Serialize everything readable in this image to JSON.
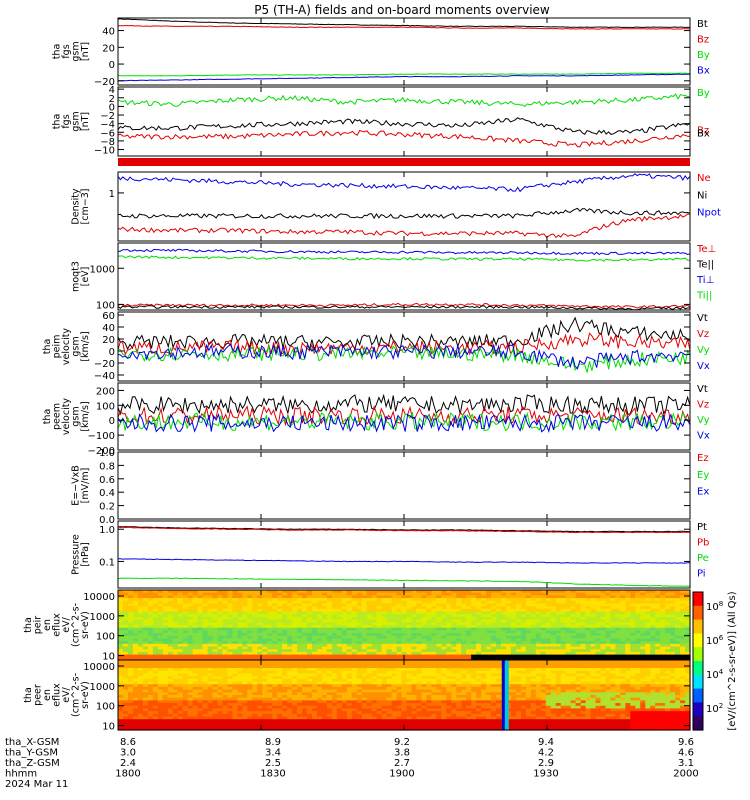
{
  "title": "P5 (TH-A) fields and on-board moments overview",
  "colors": {
    "black": "#000000",
    "red": "#e00000",
    "green": "#00dd00",
    "blue": "#0000e6"
  },
  "chart_data": [
    {
      "type": "line",
      "ylabel": [
        "tha",
        "fgs",
        "gsm",
        "[nT]"
      ],
      "ylim": [
        -25,
        55
      ],
      "yticks": [
        {
          "v": 40,
          "t": "40"
        },
        {
          "v": 20,
          "t": "20"
        },
        {
          "v": 0,
          "t": "0"
        },
        {
          "v": -20,
          "t": "−20"
        }
      ],
      "series": [
        {
          "name": "Bt",
          "color": "#000000",
          "values": [
            54,
            51,
            49,
            48,
            47,
            46,
            45,
            45,
            44,
            44,
            44
          ]
        },
        {
          "name": "Bz",
          "color": "#e00000",
          "values": [
            46,
            45,
            45,
            44,
            44,
            44,
            43,
            43,
            42,
            42,
            42
          ]
        },
        {
          "name": "By",
          "color": "#00dd00",
          "values": [
            -14,
            -14,
            -13,
            -13,
            -13,
            -12,
            -12,
            -12,
            -12,
            -11,
            -11
          ]
        },
        {
          "name": "Bx",
          "color": "#0000e6",
          "values": [
            -20,
            -19,
            -18,
            -17,
            -16,
            -15,
            -15,
            -14,
            -14,
            -13,
            -12
          ]
        }
      ]
    },
    {
      "type": "line",
      "ylabel": [
        "tha",
        "fgs",
        "gsm",
        "[nT]"
      ],
      "ylim": [
        -11.5,
        4.5
      ],
      "yticks": [
        {
          "v": 4,
          "t": "4"
        },
        {
          "v": 2,
          "t": "2"
        },
        {
          "v": 0,
          "t": "0"
        },
        {
          "v": -2,
          "t": "−2"
        },
        {
          "v": -4,
          "t": "−4"
        },
        {
          "v": -6,
          "t": "−6"
        },
        {
          "v": -8,
          "t": "−8"
        },
        {
          "v": -10,
          "t": "−10"
        }
      ],
      "series": [
        {
          "name": "By",
          "color": "#00dd00",
          "values": [
            1,
            0.5,
            1.5,
            2,
            1,
            1.5,
            1,
            0.5,
            1,
            1.5,
            2.5
          ]
        },
        {
          "name": "Bz",
          "color": "#e00000",
          "values": [
            -7,
            -7,
            -7,
            -6.5,
            -6,
            -6.5,
            -7,
            -8,
            -9,
            -8,
            -6.5
          ]
        },
        {
          "name": "Bx",
          "color": "#000000",
          "values": [
            -5,
            -5,
            -4.5,
            -4,
            -3.5,
            -4,
            -4.5,
            -3,
            -6,
            -6,
            -4
          ]
        }
      ]
    },
    {
      "type": "line",
      "ylabel": [],
      "series": [
        {
          "name": "",
          "color": "#e00000",
          "values": [
            1
          ]
        }
      ]
    },
    {
      "type": "line",
      "ylabel": [
        "Density",
        "[cm−3]"
      ],
      "scale": "log",
      "ylim": [
        0.08,
        3
      ],
      "yticks": [
        {
          "v": 1,
          "t": "1"
        }
      ],
      "series": [
        {
          "name": "Ne",
          "color": "#e00000",
          "values": [
            0.15,
            0.14,
            0.14,
            0.13,
            0.13,
            0.12,
            0.12,
            0.12,
            0.1,
            0.25,
            0.3
          ]
        },
        {
          "name": "Ni",
          "color": "#000000",
          "values": [
            0.3,
            0.3,
            0.3,
            0.3,
            0.3,
            0.3,
            0.3,
            0.3,
            0.4,
            0.35,
            0.35
          ]
        },
        {
          "name": "Npot",
          "color": "#0000e6",
          "values": [
            2.2,
            2,
            1.8,
            1.6,
            1.5,
            1.4,
            1.3,
            1.2,
            1.8,
            2.5,
            2.2
          ]
        }
      ]
    },
    {
      "type": "line",
      "ylabel": [
        "moqt3",
        "[eV]"
      ],
      "scale": "log",
      "ylim": [
        70,
        5000
      ],
      "yticks": [
        {
          "v": 1000,
          "t": "1000"
        },
        {
          "v": 100,
          "t": "100"
        }
      ],
      "series": [
        {
          "name": "Te⊥",
          "color": "#e00000",
          "values": [
            95,
            95,
            95,
            95,
            95,
            100,
            100,
            95,
            90,
            85,
            90
          ]
        },
        {
          "name": "Te||",
          "color": "#000000",
          "values": [
            85,
            85,
            85,
            85,
            85,
            85,
            85,
            85,
            80,
            75,
            80
          ]
        },
        {
          "name": "Ti⊥",
          "color": "#0000e6",
          "values": [
            3200,
            3100,
            3000,
            2900,
            2800,
            2800,
            2700,
            2700,
            2600,
            2600,
            2600
          ]
        },
        {
          "name": "Ti||",
          "color": "#00dd00",
          "values": [
            2100,
            2000,
            1950,
            1900,
            1850,
            1850,
            1800,
            1800,
            1700,
            1700,
            1800
          ]
        }
      ]
    },
    {
      "type": "line",
      "ylabel": [
        "tha",
        "peim",
        "velocity",
        "gsm",
        "[km/s]"
      ],
      "ylim": [
        -50,
        65
      ],
      "yticks": [
        {
          "v": 60,
          "t": "60"
        },
        {
          "v": 40,
          "t": "40"
        },
        {
          "v": 20,
          "t": "20"
        },
        {
          "v": 0,
          "t": "0"
        },
        {
          "v": -20,
          "t": "−20"
        },
        {
          "v": -40,
          "t": "−40"
        }
      ],
      "series": [
        {
          "name": "Vt",
          "color": "#000000",
          "values": [
            15,
            15,
            16,
            15,
            14,
            16,
            15,
            18,
            45,
            30,
            25
          ]
        },
        {
          "name": "Vz",
          "color": "#e00000",
          "values": [
            5,
            5,
            6,
            5,
            5,
            6,
            5,
            6,
            20,
            15,
            10
          ]
        },
        {
          "name": "Vy",
          "color": "#00dd00",
          "values": [
            -5,
            -4,
            -5,
            -4,
            -5,
            -4,
            -5,
            -6,
            -25,
            -15,
            -10
          ]
        },
        {
          "name": "Vx",
          "color": "#0000e6",
          "values": [
            -2,
            -2,
            -1,
            -2,
            -1,
            -2,
            -1,
            -2,
            -20,
            -10,
            -5
          ]
        }
      ]
    },
    {
      "type": "line",
      "ylabel": [
        "tha",
        "peem",
        "velocity",
        "gsm",
        "[km/s]"
      ],
      "ylim": [
        -200,
        250
      ],
      "yticks": [
        {
          "v": 200,
          "t": "200"
        },
        {
          "v": 100,
          "t": "100"
        },
        {
          "v": 0,
          "t": "0"
        },
        {
          "v": -100,
          "t": "−100"
        },
        {
          "v": -200,
          "t": "−200"
        }
      ],
      "series": [
        {
          "name": "Vt",
          "color": "#000000",
          "values": [
            100,
            100,
            105,
            100,
            110,
            105,
            100,
            110,
            105,
            100,
            100
          ]
        },
        {
          "name": "Vz",
          "color": "#e00000",
          "values": [
            30,
            30,
            35,
            30,
            35,
            30,
            30,
            35,
            30,
            30,
            30
          ]
        },
        {
          "name": "Vy",
          "color": "#00dd00",
          "values": [
            -10,
            -10,
            -10,
            -10,
            -10,
            -10,
            -10,
            -10,
            -10,
            -10,
            -10
          ]
        },
        {
          "name": "Vx",
          "color": "#0000e6",
          "values": [
            -20,
            -20,
            -20,
            -20,
            -20,
            -20,
            -20,
            -20,
            -20,
            -20,
            -20
          ]
        }
      ]
    },
    {
      "type": "line",
      "ylabel": [
        "E=−VxB",
        "[mV/m]"
      ],
      "ylim": [
        0,
        1
      ],
      "yticks": [
        {
          "v": 1,
          "t": "1.0"
        },
        {
          "v": 0.8,
          "t": "0.8"
        },
        {
          "v": 0.6,
          "t": "0.6"
        },
        {
          "v": 0.4,
          "t": "0.4"
        },
        {
          "v": 0.2,
          "t": "0.2"
        },
        {
          "v": 0,
          "t": "0.0"
        }
      ],
      "series": [
        {
          "name": "Ez",
          "color": "#e00000",
          "values": []
        },
        {
          "name": "Ey",
          "color": "#00dd00",
          "values": []
        },
        {
          "name": "Ex",
          "color": "#0000e6",
          "values": []
        }
      ]
    },
    {
      "type": "line",
      "ylabel": [
        "Pressure",
        "[nPa]"
      ],
      "scale": "log",
      "ylim": [
        0.015,
        1.8
      ],
      "yticks": [
        {
          "v": 1,
          "t": "1.0"
        },
        {
          "v": 0.1,
          "t": "0.1"
        }
      ],
      "series": [
        {
          "name": "Pt",
          "color": "#000000",
          "values": [
            1.2,
            1.1,
            1.05,
            1,
            1,
            0.95,
            0.95,
            0.9,
            0.85,
            0.85,
            0.85
          ]
        },
        {
          "name": "Pb",
          "color": "#e00000",
          "values": [
            1.15,
            1.05,
            1,
            0.95,
            0.95,
            0.9,
            0.9,
            0.85,
            0.8,
            0.8,
            0.8
          ]
        },
        {
          "name": "Pe",
          "color": "#00dd00",
          "values": [
            0.03,
            0.03,
            0.029,
            0.028,
            0.027,
            0.026,
            0.025,
            0.024,
            0.02,
            0.018,
            0.017
          ]
        },
        {
          "name": "Pi",
          "color": "#0000e6",
          "values": [
            0.12,
            0.115,
            0.11,
            0.105,
            0.1,
            0.1,
            0.095,
            0.095,
            0.09,
            0.09,
            0.09
          ]
        }
      ]
    },
    {
      "type": "heatmap",
      "ylabel": [
        "tha",
        "peir",
        "en",
        "eflux",
        "eV/",
        "(cm^2-s-",
        "sr-eV)"
      ],
      "scale": "log",
      "ylim": [
        6,
        20000
      ],
      "yticks": [
        {
          "v": 10000,
          "t": "10000"
        },
        {
          "v": 1000,
          "t": "1000"
        },
        {
          "v": 100,
          "t": "100"
        },
        {
          "v": 10,
          "t": "10"
        }
      ]
    },
    {
      "type": "heatmap",
      "ylabel": [
        "tha",
        "peer",
        "en",
        "eflux",
        "eV/",
        "(cm^2-s-",
        "sr-eV)"
      ],
      "scale": "log",
      "ylim": [
        6,
        20000
      ],
      "yticks": [
        {
          "v": 10000,
          "t": "10000"
        },
        {
          "v": 1000,
          "t": "1000"
        },
        {
          "v": 100,
          "t": "100"
        },
        {
          "v": 10,
          "t": "10"
        }
      ]
    }
  ],
  "colorbar": {
    "label": "[eV/(cm^2-s-sr-eV)] (All Qs)",
    "ticks": [
      "10^8",
      "10^6",
      "10^4",
      "10^2"
    ]
  },
  "x_axis": {
    "labels": [
      {
        "text": "tha_X-GSM",
        "values": [
          "8.6",
          "8.9",
          "9.2",
          "9.4",
          "9.6"
        ]
      },
      {
        "text": "tha_Y-GSM",
        "values": [
          "3.0",
          "3.4",
          "3.8",
          "4.2",
          "4.6"
        ]
      },
      {
        "text": "tha_Z-GSM",
        "values": [
          "2.4",
          "2.5",
          "2.7",
          "2.9",
          "3.1"
        ]
      },
      {
        "text": "hhmm",
        "values": [
          "1800",
          "1830",
          "1900",
          "1930",
          "2000"
        ]
      }
    ],
    "date": "2024 Mar 11"
  }
}
